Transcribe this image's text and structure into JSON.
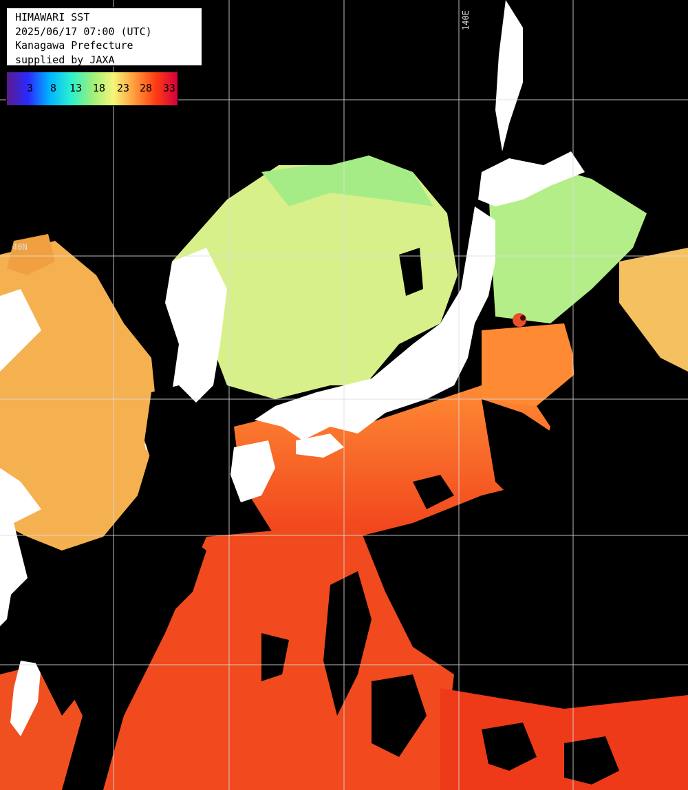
{
  "header": {
    "title": "HIMAWARI SST",
    "datetime": "2025/06/17 07:00 (UTC)",
    "region": "Kanagawa Prefecture",
    "credit": "supplied by JAXA"
  },
  "colorbar": {
    "ticks": [
      "3",
      "8",
      "13",
      "18",
      "23",
      "28",
      "33"
    ],
    "colors": [
      "#5a1a8c",
      "#2a2aff",
      "#00b4ff",
      "#2af0d0",
      "#9bf07a",
      "#f5f57a",
      "#ff9a3a",
      "#ff3a14",
      "#d4003c"
    ]
  },
  "grid": {
    "lon_label": "140E",
    "lat_label": "40N"
  },
  "palette": {
    "land": "#ffffff",
    "cloud": "#000000",
    "gridline": "#dddddd"
  }
}
